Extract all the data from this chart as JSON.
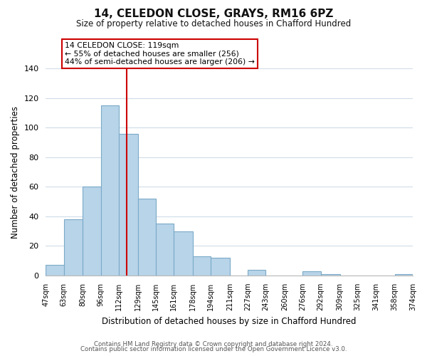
{
  "title": "14, CELEDON CLOSE, GRAYS, RM16 6PZ",
  "subtitle": "Size of property relative to detached houses in Chafford Hundred",
  "xlabel": "Distribution of detached houses by size in Chafford Hundred",
  "ylabel": "Number of detached properties",
  "bar_edges": [
    47,
    63,
    80,
    96,
    112,
    129,
    145,
    161,
    178,
    194,
    211,
    227,
    243,
    260,
    276,
    292,
    309,
    325,
    341,
    358,
    374
  ],
  "bar_heights": [
    7,
    38,
    60,
    115,
    96,
    52,
    35,
    30,
    13,
    12,
    0,
    4,
    0,
    0,
    3,
    1,
    0,
    0,
    0,
    1
  ],
  "bar_color": "#b8d4e8",
  "bar_edge_color": "#7aaac8",
  "property_line_x": 119,
  "property_line_color": "#cc0000",
  "annotation_text": "14 CELEDON CLOSE: 119sqm\n← 55% of detached houses are smaller (256)\n44% of semi-detached houses are larger (206) →",
  "annotation_box_color": "#ffffff",
  "annotation_box_edge": "#cc0000",
  "ylim": [
    0,
    140
  ],
  "yticks": [
    0,
    20,
    40,
    60,
    80,
    100,
    120,
    140
  ],
  "tick_labels": [
    "47sqm",
    "63sqm",
    "80sqm",
    "96sqm",
    "112sqm",
    "129sqm",
    "145sqm",
    "161sqm",
    "178sqm",
    "194sqm",
    "211sqm",
    "227sqm",
    "243sqm",
    "260sqm",
    "276sqm",
    "292sqm",
    "309sqm",
    "325sqm",
    "341sqm",
    "358sqm",
    "374sqm"
  ],
  "footer1": "Contains HM Land Registry data © Crown copyright and database right 2024.",
  "footer2": "Contains public sector information licensed under the Open Government Licence v3.0.",
  "background_color": "#ffffff",
  "grid_color": "#d0dce8"
}
